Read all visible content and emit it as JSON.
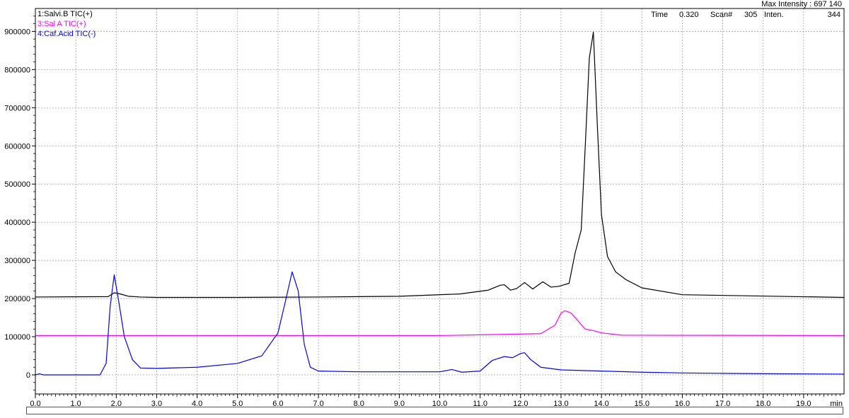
{
  "header": {
    "max_intensity": "Max Intensity : 697 140",
    "time_label": "Time",
    "time_value": "0.320",
    "scan_label": "Scan#",
    "scan_value": "305",
    "inten_label": "Inten.",
    "inten_value": "344"
  },
  "chart_data": {
    "type": "line",
    "xlim": [
      0,
      20
    ],
    "ylim": [
      -50000,
      960000
    ],
    "xlabel": "",
    "ylabel": "",
    "x_unit": "min",
    "x_ticks": [
      "0.0",
      "1.0",
      "2.0",
      "3.0",
      "4.0",
      "5.0",
      "6.0",
      "7.0",
      "8.0",
      "9.0",
      "10.0",
      "11.0",
      "12.0",
      "13.0",
      "14.0",
      "15.0",
      "16.0",
      "17.0",
      "18.0",
      "19.0"
    ],
    "x_tick_values": [
      0,
      1,
      2,
      3,
      4,
      5,
      6,
      7,
      8,
      9,
      10,
      11,
      12,
      13,
      14,
      15,
      16,
      17,
      18,
      19
    ],
    "y_ticks": [
      "900000",
      "800000",
      "700000",
      "600000",
      "500000",
      "400000",
      "300000",
      "200000",
      "100000",
      "0"
    ],
    "y_tick_values": [
      900000,
      800000,
      700000,
      600000,
      500000,
      400000,
      300000,
      200000,
      100000,
      0
    ],
    "grid": true,
    "legend_position": "top-left",
    "series": [
      {
        "name": "1:Salvi.B TIC(+)",
        "color": "#000000",
        "x": [
          0.0,
          1.8,
          1.95,
          2.1,
          2.3,
          2.6,
          3.0,
          5.0,
          7.0,
          9.0,
          10.5,
          11.2,
          11.5,
          11.6,
          11.75,
          11.9,
          12.1,
          12.3,
          12.55,
          12.75,
          12.95,
          13.2,
          13.35,
          13.5,
          13.6,
          13.7,
          13.8,
          13.9,
          14.0,
          14.15,
          14.35,
          14.6,
          15.0,
          16.0,
          20.0
        ],
        "y": [
          204000,
          205000,
          215000,
          212000,
          206000,
          204000,
          203000,
          203000,
          204000,
          206000,
          212000,
          222000,
          235000,
          236000,
          222000,
          226000,
          242000,
          225000,
          244000,
          230000,
          232000,
          240000,
          320000,
          380000,
          600000,
          830000,
          898000,
          650000,
          420000,
          310000,
          270000,
          250000,
          228000,
          210000,
          203000
        ]
      },
      {
        "name": "3:Sal A TIC(+)",
        "color": "#ff00ff",
        "x": [
          0.0,
          10.0,
          11.0,
          12.5,
          12.85,
          13.0,
          13.1,
          13.25,
          13.45,
          13.6,
          13.8,
          14.0,
          14.5,
          20.0
        ],
        "y": [
          103000,
          103000,
          105000,
          108000,
          130000,
          162000,
          168000,
          162000,
          138000,
          120000,
          116000,
          110000,
          104000,
          103000
        ],
        "y_offset": 0
      },
      {
        "name": "4:Caf.Acid TIC(-)",
        "color": "#0000ff",
        "x": [
          0.0,
          0.1,
          0.2,
          1.6,
          1.75,
          1.85,
          1.95,
          2.05,
          2.2,
          2.4,
          2.6,
          3.0,
          4.0,
          5.0,
          5.6,
          6.0,
          6.2,
          6.35,
          6.5,
          6.65,
          6.8,
          7.0,
          8.0,
          10.0,
          10.3,
          10.55,
          11.0,
          11.3,
          11.6,
          11.8,
          12.0,
          12.1,
          12.25,
          12.5,
          13.0,
          14.0,
          15.0,
          16.0,
          17.0,
          18.0,
          20.0
        ],
        "y": [
          0,
          3000,
          0,
          0,
          30000,
          180000,
          262000,
          200000,
          100000,
          40000,
          18000,
          17000,
          20000,
          30000,
          50000,
          110000,
          200000,
          270000,
          220000,
          80000,
          20000,
          10000,
          8000,
          8000,
          14000,
          7000,
          10000,
          38000,
          48000,
          45000,
          56000,
          58000,
          40000,
          20000,
          13000,
          10000,
          7000,
          5000,
          4000,
          3000,
          2000
        ]
      }
    ]
  }
}
